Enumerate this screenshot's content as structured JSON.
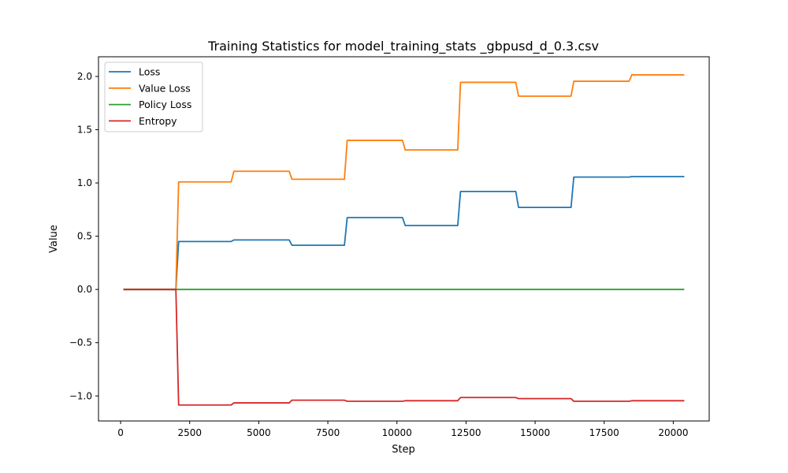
{
  "chart_data": {
    "type": "line",
    "title": "Training Statistics for model_training_stats _gbpusd_d_0.3.csv",
    "xlabel": "Step",
    "ylabel": "Value",
    "xlim": [
      -800,
      21300
    ],
    "ylim": [
      -1.235,
      2.185
    ],
    "xticks": [
      0,
      2500,
      5000,
      7500,
      10000,
      12500,
      15000,
      17500,
      20000
    ],
    "xtick_labels": [
      "0",
      "2500",
      "5000",
      "7500",
      "10000",
      "12500",
      "15000",
      "17500",
      "20000"
    ],
    "yticks": [
      -1.0,
      -0.5,
      0.0,
      0.5,
      1.0,
      1.5,
      2.0
    ],
    "ytick_labels": [
      "−1.0",
      "−0.5",
      "0.0",
      "0.5",
      "1.0",
      "1.5",
      "2.0"
    ],
    "grid": false,
    "legend_position": "top-left",
    "series": [
      {
        "name": "Loss",
        "color": "#1f77b4",
        "x": [
          100,
          2000,
          2100,
          4000,
          4100,
          6100,
          6200,
          8100,
          8200,
          10200,
          10300,
          12200,
          12300,
          14300,
          14400,
          16300,
          16400,
          18400,
          18500,
          20400
        ],
        "y": [
          0.0,
          0.0,
          0.45,
          0.45,
          0.465,
          0.465,
          0.415,
          0.415,
          0.675,
          0.675,
          0.6,
          0.6,
          0.92,
          0.92,
          0.77,
          0.77,
          1.055,
          1.055,
          1.06,
          1.06
        ]
      },
      {
        "name": "Value Loss",
        "color": "#ff7f0e",
        "x": [
          100,
          2000,
          2100,
          4000,
          4100,
          6100,
          6200,
          8100,
          8200,
          10200,
          10300,
          12200,
          12300,
          14300,
          14400,
          16300,
          16400,
          18400,
          18500,
          20400
        ],
        "y": [
          0.0,
          0.0,
          1.01,
          1.01,
          1.11,
          1.11,
          1.035,
          1.035,
          1.4,
          1.4,
          1.31,
          1.31,
          1.945,
          1.945,
          1.815,
          1.815,
          1.955,
          1.955,
          2.015,
          2.015
        ]
      },
      {
        "name": "Policy Loss",
        "color": "#2ca02c",
        "x": [
          100,
          20400
        ],
        "y": [
          0.0,
          0.0
        ]
      },
      {
        "name": "Entropy",
        "color": "#d62728",
        "x": [
          100,
          2000,
          2100,
          4000,
          4100,
          6100,
          6200,
          8100,
          8200,
          10200,
          10300,
          12200,
          12300,
          14300,
          14400,
          16300,
          16400,
          18400,
          18500,
          20400
        ],
        "y": [
          0.0,
          0.0,
          -1.085,
          -1.085,
          -1.065,
          -1.065,
          -1.04,
          -1.04,
          -1.05,
          -1.05,
          -1.045,
          -1.045,
          -1.015,
          -1.015,
          -1.025,
          -1.025,
          -1.05,
          -1.05,
          -1.045,
          -1.045
        ]
      }
    ]
  }
}
